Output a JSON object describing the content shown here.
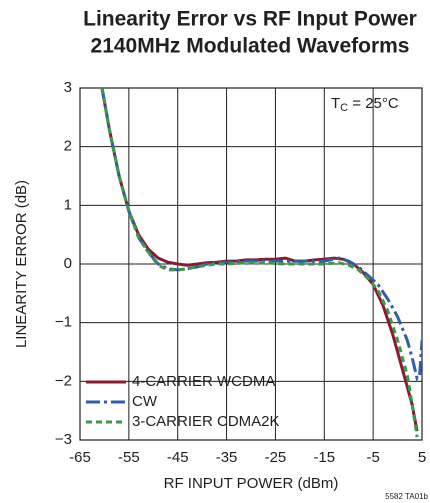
{
  "chart_data": {
    "type": "line",
    "title": [
      "Linearity Error vs RF Input Power",
      "2140MHz Modulated Waveforms"
    ],
    "xlabel": "RF INPUT POWER (dBm)",
    "ylabel": "LINEARITY ERROR (dB)",
    "annotation": {
      "main": "T",
      "sub": "C",
      "rest": " = 25°C"
    },
    "footnote": "5582 TA01b",
    "xlim": [
      -65,
      5
    ],
    "ylim": [
      -3,
      3
    ],
    "xticks": [
      -65,
      -55,
      -45,
      -35,
      -25,
      -15,
      -5,
      5
    ],
    "yticks": [
      3,
      2,
      1,
      0,
      {
        "value": -1,
        "label": "−1"
      },
      {
        "value": -2,
        "label": "−2"
      },
      {
        "value": -3,
        "label": "−3"
      }
    ],
    "grid": true,
    "legend": "lower left",
    "series": [
      {
        "name": "4-CARRIER WCDMA",
        "color": "#8b1a2e",
        "dash": "solid",
        "x": [
          -60.5,
          -59,
          -57,
          -55,
          -53,
          -51,
          -49,
          -47,
          -45,
          -43,
          -41,
          -39,
          -37,
          -35,
          -33,
          -31,
          -29,
          -27,
          -25,
          -23,
          -21,
          -19,
          -17,
          -15,
          -13,
          -11,
          -9,
          -7,
          -5,
          -3,
          -1,
          1,
          3,
          4
        ],
        "values": [
          3,
          2.3,
          1.5,
          0.9,
          0.5,
          0.25,
          0.1,
          0.03,
          0.0,
          -0.02,
          0.0,
          0.02,
          0.03,
          0.05,
          0.05,
          0.07,
          0.07,
          0.08,
          0.08,
          0.1,
          0.05,
          0.05,
          0.07,
          0.08,
          0.1,
          0.08,
          0.0,
          -0.15,
          -0.35,
          -0.7,
          -1.2,
          -1.8,
          -2.4,
          -2.85
        ]
      },
      {
        "name": "CW",
        "color": "#2f5fa8",
        "dash": "long-dash-dot",
        "x": [
          -60.5,
          -59,
          -57,
          -55,
          -53,
          -51,
          -49,
          -47,
          -45,
          -43,
          -41,
          -39,
          -37,
          -35,
          -31,
          -27,
          -23,
          -19,
          -15,
          -12,
          -10,
          -8,
          -6,
          -4,
          -2,
          0,
          2,
          3,
          4,
          4.5,
          5
        ],
        "values": [
          3,
          2.3,
          1.5,
          0.9,
          0.45,
          0.2,
          0.0,
          -0.08,
          -0.1,
          -0.08,
          -0.05,
          0.0,
          0.02,
          0.03,
          0.05,
          0.05,
          0.05,
          0.05,
          0.05,
          0.1,
          0.05,
          -0.05,
          -0.2,
          -0.35,
          -0.6,
          -0.9,
          -1.3,
          -1.6,
          -1.95,
          -1.9,
          -1.3
        ]
      },
      {
        "name": "3-CARRIER CDMA2K",
        "color": "#3a9a4a",
        "dash": "dash",
        "x": [
          -60.5,
          -59,
          -57,
          -55,
          -53,
          -51,
          -49,
          -47,
          -45,
          -43,
          -41,
          -39,
          -37,
          -35,
          -31,
          -27,
          -23,
          -19,
          -15,
          -12,
          -10,
          -8,
          -6,
          -4,
          -2,
          0,
          2,
          3,
          4
        ],
        "values": [
          3,
          2.3,
          1.5,
          0.9,
          0.45,
          0.2,
          -0.02,
          -0.1,
          -0.1,
          -0.08,
          -0.05,
          -0.02,
          0.0,
          0.0,
          0.02,
          0.02,
          0.0,
          0.0,
          0.0,
          0.02,
          -0.02,
          -0.1,
          -0.25,
          -0.45,
          -0.8,
          -1.3,
          -1.9,
          -2.4,
          -2.95
        ]
      }
    ]
  }
}
